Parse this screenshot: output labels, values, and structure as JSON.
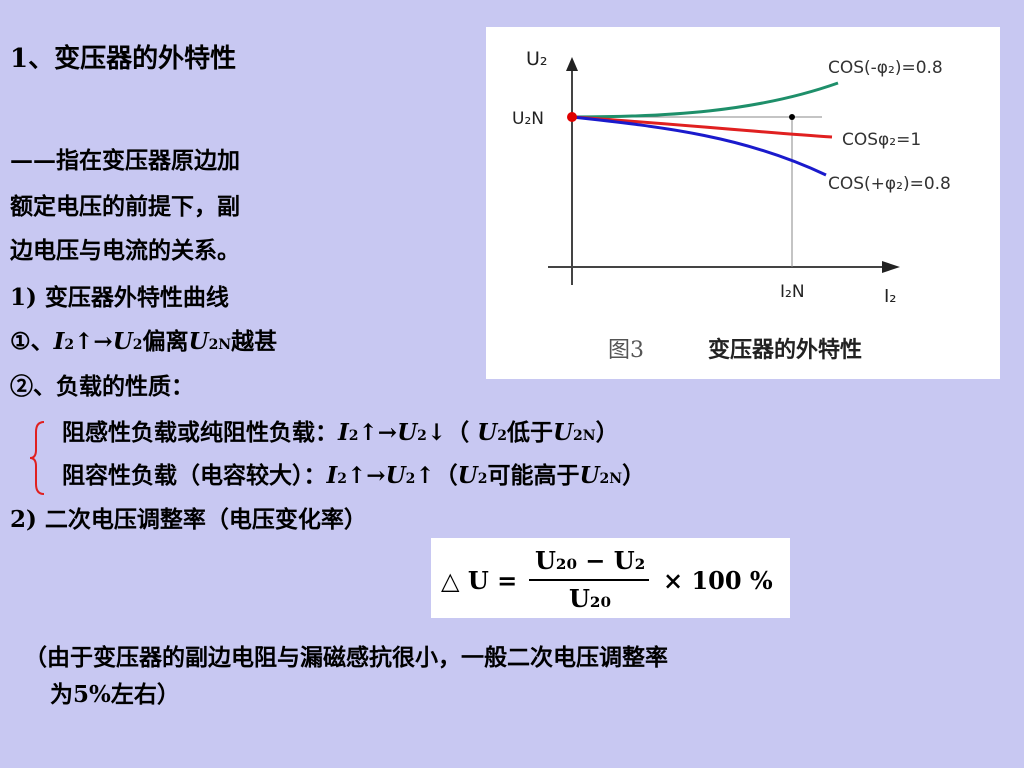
{
  "title": "1、变压器的外特性",
  "description": [
    "——指在变压器原边加",
    "额定电压的前提下，副",
    "边电压与电流的关系。"
  ],
  "section1": "1) 变压器外特性曲线",
  "item1": {
    "circle": "①、",
    "I": "I",
    "sub2": "2",
    "arrow": "↑→",
    "U": "U",
    "sub2b": "2",
    "text": "偏离",
    "U2": "U",
    "subN": "2N",
    "end": "越甚"
  },
  "item2": "②、负载的性质：",
  "loads": [
    {
      "label": "阻感性负载或纯阻性负载：",
      "I": "I",
      "s1": "2",
      "arrow": "↑→",
      "U": "U",
      "s2": "2",
      "dir": "↓",
      "paren_open": "（ ",
      "U2": "U",
      "s3": "2",
      "cmp": "低于",
      "UN": "U",
      "sN": "2N",
      "paren_close": "）"
    },
    {
      "label": "阻容性负载（电容较大）：",
      "I": "I",
      "s1": "2",
      "arrow": "↑→",
      "U": "U",
      "s2": "2",
      "dir": "↑",
      "paren_open": "（",
      "U2": "U",
      "s3": "2",
      "cmp": "可能高于",
      "UN": "U",
      "sN": "2N",
      "paren_close": "）"
    }
  ],
  "section2": "2) 二次电压调整率（电压变化率）",
  "formula": {
    "lhs": "△ U =",
    "numerator": "U₂₀ − U₂",
    "denominator": "U₂₀",
    "rhs": "× 100 %"
  },
  "note": [
    "（由于变压器的副边电阻与漏磁感抗很小，一般二次电压调整率",
    "为5%左右）"
  ],
  "figure": {
    "y_axis": "U₂",
    "y_ref": "U₂N",
    "x_ref": "I₂N",
    "x_axis": "I₂",
    "caption_num": "图3",
    "caption_text": "变压器的外特性",
    "curve_labels": [
      "COS(-φ₂)=0.8",
      "COSφ₂=1",
      "COS(+φ₂)=0.8"
    ],
    "colors": {
      "capacitive": "#1e8f6a",
      "resistive": "#e02020",
      "inductive": "#1a1acc",
      "point": "#e00000"
    }
  }
}
